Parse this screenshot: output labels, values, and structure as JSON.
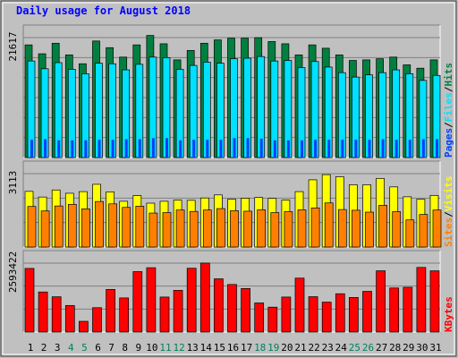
{
  "chart_data": {
    "type": "bar",
    "title": "Daily usage for August 2018",
    "categories": [
      "1",
      "2",
      "3",
      "4",
      "5",
      "6",
      "7",
      "8",
      "9",
      "10",
      "11",
      "12",
      "13",
      "14",
      "15",
      "16",
      "17",
      "18",
      "19",
      "20",
      "21",
      "22",
      "23",
      "24",
      "25",
      "26",
      "27",
      "28",
      "29",
      "30",
      "31"
    ],
    "weekend_days": [
      "4",
      "5",
      "11",
      "12",
      "18",
      "19",
      "25",
      "26"
    ],
    "panels": [
      {
        "id": "hits-panel",
        "max_label": "21617",
        "ymax": 21617,
        "legend": [
          "Pages",
          "Files",
          "Hits"
        ],
        "series": [
          {
            "name": "Hits",
            "values": [
              20300,
              18700,
              20600,
              18500,
              16900,
              21000,
              19800,
              18100,
              20300,
              22000,
              20500,
              17600,
              19300,
              20600,
              21200,
              21500,
              21500,
              21600,
              20900,
              20500,
              18500,
              20300,
              19700,
              18500,
              17500,
              17600,
              17800,
              18100,
              16700,
              16100,
              17600
            ]
          },
          {
            "name": "Files",
            "values": [
              17400,
              16000,
              17100,
              15900,
              15100,
              17000,
              16900,
              15800,
              16800,
              18100,
              18000,
              15900,
              16600,
              17200,
              17000,
              17800,
              17900,
              18200,
              17400,
              17500,
              16200,
              17300,
              16300,
              15300,
              14500,
              14900,
              15300,
              15800,
              15100,
              13900,
              14800
            ]
          },
          {
            "name": "Pages",
            "values": [
              3200,
              3300,
              3100,
              3100,
              3100,
              3200,
              3200,
              3300,
              3300,
              3500,
              3500,
              3100,
              3200,
              3200,
              3200,
              3500,
              3500,
              3400,
              3100,
              3100,
              3100,
              3200,
              3200,
              3200,
              3200,
              3200,
              3300,
              3200,
              3200,
              3300,
              3300
            ]
          }
        ],
        "colors": {
          "Hits": "#008040",
          "Files": "#00e0ff",
          "Pages": "#0040ff"
        }
      },
      {
        "id": "visits-panel",
        "max_label": "3113",
        "ymax": 3113,
        "legend": [
          "Sites",
          "Visits"
        ],
        "series": [
          {
            "name": "Visits",
            "values": [
              2360,
              2120,
              2420,
              2280,
              2350,
              2660,
              2340,
              1940,
              2180,
              1860,
              1940,
              1990,
              1980,
              2080,
              2210,
              2030,
              2070,
              2100,
              2060,
              1990,
              2350,
              2850,
              3070,
              2980,
              2640,
              2640,
              2910,
              2550,
              2130,
              2030,
              2190
            ]
          },
          {
            "name": "Sites",
            "values": [
              1720,
              1530,
              1740,
              1810,
              1620,
              1930,
              1830,
              1680,
              1730,
              1440,
              1460,
              1570,
              1510,
              1570,
              1630,
              1540,
              1520,
              1580,
              1460,
              1500,
              1580,
              1660,
              1870,
              1590,
              1560,
              1480,
              1770,
              1500,
              1150,
              1380,
              1570
            ]
          }
        ],
        "colors": {
          "Visits": "#ffff00",
          "Sites": "#ff8000"
        }
      },
      {
        "id": "kbytes-panel",
        "max_label": "2593422",
        "ymax": 2593422,
        "legend": [
          "KBytes"
        ],
        "series": [
          {
            "name": "KBytes",
            "values": [
              2394000,
              1508000,
              1326000,
              1000000,
              403000,
              917000,
              1603000,
              1284000,
              2274000,
              2421000,
              1317000,
              1569000,
              2401000,
              2596000,
              2003000,
              1790000,
              1639000,
              1095000,
              937000,
              1317000,
              2029000,
              1330000,
              1126000,
              1441000,
              1302000,
              1531000,
              2305000,
              1658000,
              1684000,
              2432000,
              2303000
            ]
          }
        ],
        "colors": {
          "KBytes": "#ff0000"
        }
      }
    ],
    "colors": {
      "background": "#c0c0c0",
      "title": "#0000ff",
      "weekday_label": "#000000",
      "weekend_label": "#00805c",
      "grid": "#808080"
    }
  }
}
